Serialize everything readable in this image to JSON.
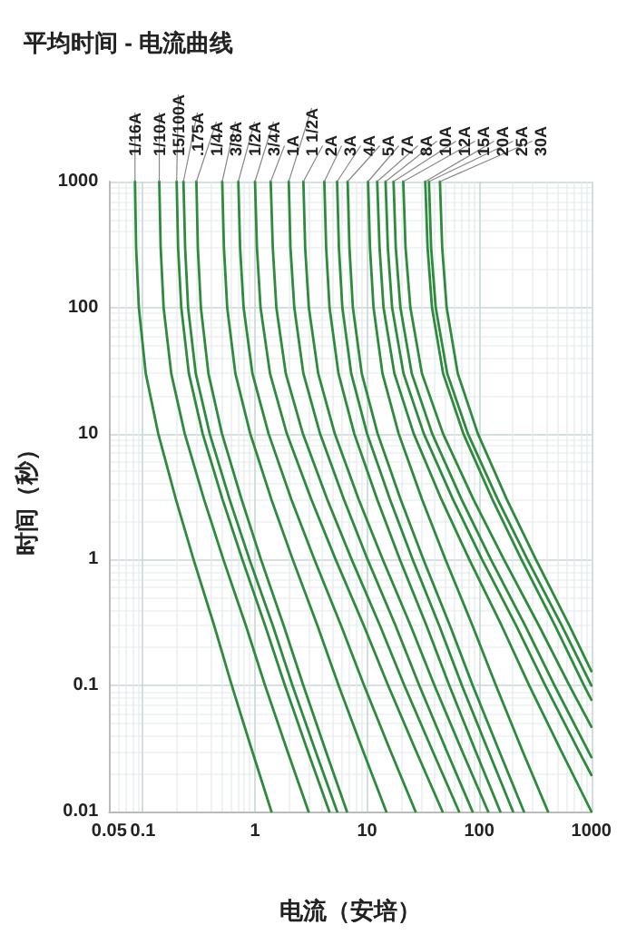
{
  "chart_data": {
    "type": "line",
    "title": "平均时间 - 电流曲线",
    "xlabel": "电流（安培）",
    "ylabel": "时间（秒）",
    "log": "xy",
    "xlim": [
      0.05,
      1000
    ],
    "ylim": [
      0.01,
      1000
    ],
    "xticks": [
      0.05,
      0.1,
      1,
      10,
      100,
      1000
    ],
    "yticks": [
      0.01,
      0.1,
      1,
      10,
      100,
      1000
    ],
    "grid": true,
    "legend": false,
    "marker": "none",
    "line_style": "solid",
    "series": [
      {
        "name": "1/16A",
        "color": "#2e8b3e",
        "x": [
          0.085,
          0.087,
          0.092,
          0.106,
          0.137,
          0.197,
          0.283,
          0.432,
          0.621,
          0.946,
          1.4
        ],
        "values": [
          1000,
          300,
          100,
          30,
          10,
          3,
          1,
          0.3,
          0.1,
          0.03,
          0.01
        ]
      },
      {
        "name": "1/10A",
        "color": "#2e8b3e",
        "x": [
          0.14,
          0.144,
          0.153,
          0.179,
          0.236,
          0.351,
          0.522,
          0.828,
          1.23,
          1.95,
          3.0
        ],
        "values": [
          1000,
          300,
          100,
          30,
          10,
          3,
          1,
          0.3,
          0.1,
          0.03,
          0.01
        ]
      },
      {
        "name": "15/100A",
        "color": "#2e8b3e",
        "x": [
          0.2,
          0.206,
          0.22,
          0.257,
          0.341,
          0.513,
          0.771,
          1.23,
          1.85,
          2.96,
          4.6
        ],
        "values": [
          1000,
          300,
          100,
          30,
          10,
          3,
          1,
          0.3,
          0.1,
          0.03,
          0.01
        ]
      },
      {
        "name": ".175A",
        "color": "#2e8b3e",
        "x": [
          0.23,
          0.238,
          0.253,
          0.296,
          0.394,
          0.593,
          0.893,
          1.44,
          2.16,
          3.47,
          5.4
        ],
        "values": [
          1000,
          300,
          100,
          30,
          10,
          3,
          1,
          0.3,
          0.1,
          0.03,
          0.01
        ]
      },
      {
        "name": "1/4A",
        "color": "#2e8b3e",
        "x": [
          0.3,
          0.309,
          0.329,
          0.384,
          0.507,
          0.759,
          1.13,
          1.8,
          2.7,
          4.29,
          6.6
        ],
        "values": [
          1000,
          300,
          100,
          30,
          10,
          3,
          1,
          0.3,
          0.1,
          0.03,
          0.01
        ]
      },
      {
        "name": "3/8A",
        "color": "#2e8b3e",
        "x": [
          0.51,
          0.528,
          0.565,
          0.668,
          0.906,
          1.4,
          2.17,
          3.6,
          5.57,
          9.23,
          14.8
        ],
        "values": [
          1000,
          300,
          100,
          30,
          10,
          3,
          1,
          0.3,
          0.1,
          0.03,
          0.01
        ]
      },
      {
        "name": "1/2A",
        "color": "#2e8b3e",
        "x": [
          0.71,
          0.736,
          0.791,
          0.948,
          1.32,
          2.11,
          3.39,
          5.85,
          9.4,
          16.2,
          27
        ],
        "values": [
          1000,
          300,
          100,
          30,
          10,
          3,
          1,
          0.3,
          0.1,
          0.03,
          0.01
        ]
      },
      {
        "name": "3/4A",
        "color": "#2e8b3e",
        "x": [
          1.0,
          1.04,
          1.12,
          1.36,
          1.92,
          3.18,
          5.24,
          9.33,
          15.4,
          27.4,
          47
        ],
        "values": [
          1000,
          300,
          100,
          30,
          10,
          3,
          1,
          0.3,
          0.1,
          0.03,
          0.01
        ]
      },
      {
        "name": "1A",
        "color": "#2e8b3e",
        "x": [
          1.38,
          1.44,
          1.55,
          1.88,
          2.67,
          4.41,
          7.28,
          13.0,
          21.5,
          38.5,
          66
        ],
        "values": [
          1000,
          300,
          100,
          30,
          10,
          3,
          1,
          0.3,
          0.1,
          0.03,
          0.01
        ]
      },
      {
        "name": "1 1/2A",
        "color": "#2e8b3e",
        "x": [
          2.0,
          2.07,
          2.24,
          2.7,
          3.8,
          6.21,
          10.1,
          17.9,
          29.2,
          51.4,
          87
        ],
        "values": [
          1000,
          300,
          100,
          30,
          10,
          3,
          1,
          0.3,
          0.1,
          0.03,
          0.01
        ]
      },
      {
        "name": "2A",
        "color": "#2e8b3e",
        "x": [
          2.7,
          2.8,
          3.02,
          3.66,
          5.14,
          8.41,
          13.8,
          24.4,
          39.9,
          70.5,
          120
        ],
        "values": [
          1000,
          300,
          100,
          30,
          10,
          3,
          1,
          0.3,
          0.1,
          0.03,
          0.01
        ]
      },
      {
        "name": "3A",
        "color": "#2e8b3e",
        "x": [
          4.15,
          4.31,
          4.62,
          5.55,
          7.67,
          12.3,
          19.6,
          33.8,
          54.1,
          92.9,
          154
        ],
        "values": [
          1000,
          300,
          100,
          30,
          10,
          3,
          1,
          0.3,
          0.1,
          0.03,
          0.01
        ]
      },
      {
        "name": "4A",
        "color": "#2e8b3e",
        "x": [
          5.4,
          5.6,
          6.01,
          7.21,
          9.98,
          16.0,
          25.5,
          43.9,
          70.1,
          121,
          200
        ],
        "values": [
          1000,
          300,
          100,
          30,
          10,
          3,
          1,
          0.3,
          0.1,
          0.03,
          0.01
        ]
      },
      {
        "name": "5A",
        "color": "#2e8b3e",
        "x": [
          6.7,
          6.95,
          7.46,
          8.95,
          12.4,
          19.9,
          31.8,
          54.7,
          87.5,
          151,
          250
        ],
        "values": [
          1000,
          300,
          100,
          30,
          10,
          3,
          1,
          0.3,
          0.1,
          0.03,
          0.01
        ]
      },
      {
        "name": "7A",
        "color": "#2e8b3e",
        "x": [
          10.2,
          10.6,
          11.4,
          13.7,
          19.1,
          30.9,
          50.0,
          86.9,
          141,
          244,
          410
        ],
        "values": [
          1000,
          300,
          100,
          30,
          10,
          3,
          1,
          0.3,
          0.1,
          0.03,
          0.01
        ]
      },
      {
        "name": "8A",
        "color": "#2e8b3e",
        "x": [
          12.3,
          12.9,
          14.0,
          17.5,
          26.0,
          46.0,
          81.5,
          158,
          279,
          541,
          1000
        ],
        "values": [
          1000,
          300,
          100,
          30,
          10,
          3,
          1,
          0.3,
          0.1,
          0.03,
          0.01
        ]
      },
      {
        "name": "10A",
        "color": "#2e8b3e",
        "x": [
          14.6,
          15.3,
          16.7,
          21.1,
          32.0,
          58.3,
          106,
          213,
          388,
          776,
          1000
        ],
        "values": [
          1000,
          300,
          100,
          30,
          10,
          3,
          1,
          0.3,
          0.1,
          0.03,
          0.0195
        ]
      },
      {
        "name": "12A",
        "color": "#2e8b3e",
        "x": [
          17.2,
          18.0,
          19.8,
          25.0,
          38.0,
          69.5,
          127,
          256,
          469,
          942,
          1000
        ],
        "values": [
          1000,
          300,
          100,
          30,
          10,
          3,
          1,
          0.3,
          0.1,
          0.03,
          0.027
        ]
      },
      {
        "name": "15A",
        "color": "#2e8b3e",
        "x": [
          21,
          22.0,
          24.3,
          30.8,
          47.5,
          88.7,
          166,
          340,
          637,
          1000
        ],
        "values": [
          1000,
          300,
          100,
          30,
          10,
          3,
          1,
          0.3,
          0.1,
          0.047
        ]
      },
      {
        "name": "20A",
        "color": "#2e8b3e",
        "x": [
          33,
          34.6,
          37.9,
          47.6,
          72.1,
          131,
          238,
          473,
          859,
          1000
        ],
        "values": [
          1000,
          300,
          100,
          30,
          10,
          3,
          1,
          0.3,
          0.1,
          0.077
        ]
      },
      {
        "name": "25A",
        "color": "#2e8b3e",
        "x": [
          35.6,
          37.2,
          40.9,
          51.8,
          79.1,
          146,
          269,
          543,
          1000
        ],
        "values": [
          1000,
          300,
          100,
          30,
          10,
          3,
          1,
          0.3,
          0.1
        ]
      },
      {
        "name": "30A",
        "color": "#2e8b3e",
        "x": [
          44.6,
          46.7,
          51.2,
          64.3,
          97.1,
          176,
          320,
          635,
          1000
        ],
        "values": [
          1000,
          300,
          100,
          30,
          10,
          3,
          1,
          0.3,
          0.13
        ]
      }
    ]
  }
}
